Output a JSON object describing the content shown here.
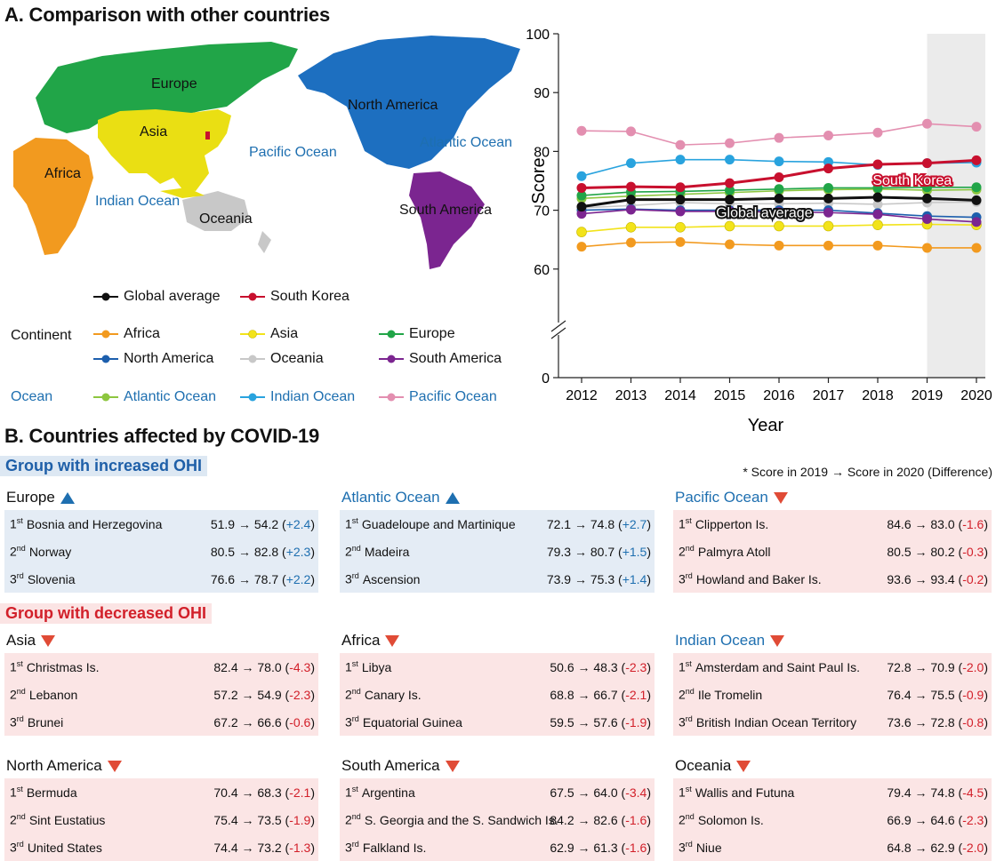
{
  "panelA": {
    "title": "A. Comparison with other countries",
    "map_labels": {
      "europe": "Europe",
      "asia": "Asia",
      "africa": "Africa",
      "oceania": "Oceania",
      "north_america": "North America",
      "south_america": "South America",
      "pacific_ocean": "Pacific Ocean",
      "atlantic_ocean": "Atlantic Ocean",
      "indian_ocean": "Indian Ocean"
    },
    "legend": {
      "continent_label": "Continent",
      "ocean_label": "Ocean",
      "items": {
        "global": {
          "label": "Global average",
          "color": "#111111"
        },
        "korea": {
          "label": "South Korea",
          "color": "#c8102e"
        },
        "africa": {
          "label": "Africa",
          "color": "#f29a1f"
        },
        "asia": {
          "label": "Asia",
          "color": "#f2e31a"
        },
        "europe": {
          "label": "Europe",
          "color": "#21a548"
        },
        "north_america": {
          "label": "North America",
          "color": "#1d5fad"
        },
        "oceania": {
          "label": "Oceania",
          "color": "#c8c8c8"
        },
        "south_america": {
          "label": "South America",
          "color": "#7b2590"
        },
        "atlantic": {
          "label": "Atlantic Ocean",
          "color": "#8dc63f"
        },
        "indian": {
          "label": "Indian Ocean",
          "color": "#29a3de"
        },
        "pacific": {
          "label": "Pacific Ocean",
          "color": "#e38fb0"
        }
      }
    }
  },
  "chart_data": {
    "type": "line",
    "x": [
      2012,
      2013,
      2014,
      2015,
      2016,
      2017,
      2018,
      2019,
      2020
    ],
    "xlabel": "Year",
    "ylabel": "Score",
    "ylim": [
      0,
      100
    ],
    "yticks": [
      0,
      60,
      70,
      80,
      90,
      100
    ],
    "axis_break": "between 0 and 60",
    "highlight_years": [
      2019,
      2020
    ],
    "annotations": [
      "South Korea",
      "Global average"
    ],
    "series": [
      {
        "key": "pacific",
        "name": "Pacific Ocean",
        "color": "#e38fb0",
        "values": [
          83.5,
          83.4,
          81.1,
          81.4,
          82.3,
          82.7,
          83.2,
          84.7,
          84.2
        ]
      },
      {
        "key": "indian",
        "name": "Indian Ocean",
        "color": "#29a3de",
        "values": [
          75.8,
          78.0,
          78.6,
          78.6,
          78.3,
          78.2,
          77.7,
          78.0,
          78.1
        ]
      },
      {
        "key": "korea",
        "name": "South Korea",
        "color": "#c8102e",
        "values": [
          73.8,
          74.0,
          73.9,
          74.6,
          75.6,
          77.1,
          77.8,
          78.0,
          78.5
        ]
      },
      {
        "key": "europe",
        "name": "Europe",
        "color": "#21a548",
        "values": [
          72.5,
          73.1,
          73.2,
          73.4,
          73.6,
          73.8,
          73.8,
          73.9,
          73.9
        ]
      },
      {
        "key": "atlantic",
        "name": "Atlantic Ocean",
        "color": "#8dc63f",
        "values": [
          72.0,
          72.4,
          72.7,
          73.0,
          73.3,
          73.5,
          73.6,
          73.4,
          73.5
        ]
      },
      {
        "key": "global",
        "name": "Global average",
        "color": "#111111",
        "values": [
          70.6,
          71.8,
          71.8,
          71.8,
          72.0,
          72.0,
          72.2,
          72.0,
          71.7
        ]
      },
      {
        "key": "oceania",
        "name": "Oceania",
        "color": "#c8c8c8",
        "values": [
          70.4,
          70.8,
          71.3,
          71.1,
          71.1,
          71.2,
          71.0,
          71.3,
          71.4
        ]
      },
      {
        "key": "south_america",
        "name": "South America",
        "color": "#7b2590",
        "values": [
          69.4,
          70.1,
          69.8,
          69.8,
          69.7,
          69.6,
          69.3,
          68.5,
          68.0
        ]
      },
      {
        "key": "north_america",
        "name": "North America",
        "color": "#1d5fad",
        "values": [
          70.0,
          70.2,
          70.0,
          70.0,
          70.0,
          70.0,
          69.5,
          69.0,
          68.8
        ]
      },
      {
        "key": "asia",
        "name": "Asia",
        "color": "#f2e31a",
        "values": [
          66.3,
          67.1,
          67.1,
          67.3,
          67.3,
          67.3,
          67.5,
          67.6,
          67.5
        ]
      },
      {
        "key": "africa",
        "name": "Africa",
        "color": "#f29a1f",
        "values": [
          63.8,
          64.5,
          64.6,
          64.2,
          64.0,
          64.0,
          64.0,
          63.6,
          63.6
        ]
      }
    ]
  },
  "panelB": {
    "title": "B. Countries affected by COVID-19",
    "increased_label": "Group with increased OHI",
    "decreased_label": "Group with decreased OHI",
    "note": "* Score in 2019 → Score in 2020 (Difference)",
    "regions": {
      "europe": {
        "title": "Europe",
        "rows": [
          {
            "ord": "st",
            "name": "Bosnia and Herzegovina",
            "vals": "51.9 → 54.2",
            "diff": "+2.4"
          },
          {
            "ord": "nd",
            "name": "Norway",
            "vals": "80.5 → 82.8",
            "diff": "+2.3"
          },
          {
            "ord": "rd",
            "name": "Slovenia",
            "vals": "76.6 → 78.7",
            "diff": "+2.2"
          }
        ]
      },
      "atlantic": {
        "title": "Atlantic Ocean",
        "rows": [
          {
            "ord": "st",
            "name": "Guadeloupe and Martinique",
            "vals": "72.1 → 74.8",
            "diff": "+2.7"
          },
          {
            "ord": "nd",
            "name": "Madeira",
            "vals": "79.3 → 80.7",
            "diff": "+1.5"
          },
          {
            "ord": "rd",
            "name": "Ascension",
            "vals": "73.9 → 75.3",
            "diff": "+1.4"
          }
        ]
      },
      "pacific": {
        "title": "Pacific Ocean",
        "rows": [
          {
            "ord": "st",
            "name": "Clipperton Is.",
            "vals": "84.6 → 83.0",
            "diff": "-1.6"
          },
          {
            "ord": "nd",
            "name": "Palmyra Atoll",
            "vals": "80.5 → 80.2",
            "diff": "-0.3"
          },
          {
            "ord": "rd",
            "name": "Howland and Baker Is.",
            "vals": "93.6 → 93.4",
            "diff": "-0.2"
          }
        ]
      },
      "asia": {
        "title": "Asia",
        "rows": [
          {
            "ord": "st",
            "name": "Christmas Is.",
            "vals": "82.4 → 78.0",
            "diff": "-4.3"
          },
          {
            "ord": "nd",
            "name": "Lebanon",
            "vals": "57.2 → 54.9",
            "diff": "-2.3"
          },
          {
            "ord": "rd",
            "name": "Brunei",
            "vals": "67.2 → 66.6",
            "diff": "-0.6"
          }
        ]
      },
      "africa": {
        "title": "Africa",
        "rows": [
          {
            "ord": "st",
            "name": "Libya",
            "vals": "50.6 → 48.3",
            "diff": "-2.3"
          },
          {
            "ord": "nd",
            "name": "Canary Is.",
            "vals": "68.8 → 66.7",
            "diff": "-2.1"
          },
          {
            "ord": "rd",
            "name": "Equatorial Guinea",
            "vals": "59.5 → 57.6",
            "diff": "-1.9"
          }
        ]
      },
      "indian": {
        "title": "Indian Ocean",
        "rows": [
          {
            "ord": "st",
            "name": "Amsterdam and Saint Paul Is.",
            "vals": "72.8 → 70.9",
            "diff": "-2.0"
          },
          {
            "ord": "nd",
            "name": "Ile Tromelin",
            "vals": "76.4 → 75.5",
            "diff": "-0.9"
          },
          {
            "ord": "rd",
            "name": "British Indian Ocean Territory",
            "vals": "73.6 → 72.8",
            "diff": "-0.8"
          }
        ]
      },
      "north_america": {
        "title": "North America",
        "rows": [
          {
            "ord": "st",
            "name": "Bermuda",
            "vals": "70.4 → 68.3",
            "diff": "-2.1"
          },
          {
            "ord": "nd",
            "name": "Sint Eustatius",
            "vals": "75.4 → 73.5",
            "diff": "-1.9"
          },
          {
            "ord": "rd",
            "name": "United States",
            "vals": "74.4 → 73.2",
            "diff": "-1.3"
          }
        ]
      },
      "south_america": {
        "title": "South America",
        "rows": [
          {
            "ord": "st",
            "name": "Argentina",
            "vals": "67.5 → 64.0",
            "diff": "-3.4"
          },
          {
            "ord": "nd",
            "name": "S. Georgia and the S. Sandwich Is.",
            "vals": "84.2 → 82.6",
            "diff": "-1.6"
          },
          {
            "ord": "rd",
            "name": "Falkland Is.",
            "vals": "62.9 → 61.3",
            "diff": "-1.6"
          }
        ]
      },
      "oceania": {
        "title": "Oceania",
        "rows": [
          {
            "ord": "st",
            "name": "Wallis and Futuna",
            "vals": "79.4 → 74.8",
            "diff": "-4.5"
          },
          {
            "ord": "nd",
            "name": "Solomon Is.",
            "vals": "66.9 → 64.6",
            "diff": "-2.3"
          },
          {
            "ord": "rd",
            "name": "Niue",
            "vals": "64.8 → 62.9",
            "diff": "-2.0"
          }
        ]
      }
    }
  }
}
